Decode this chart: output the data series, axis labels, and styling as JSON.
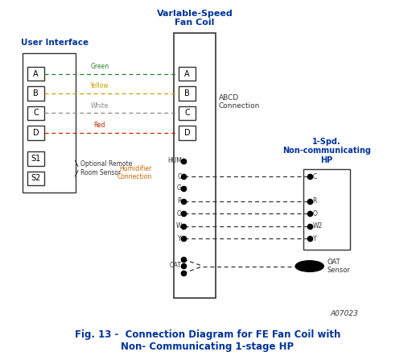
{
  "title": "Fig. 13 -  Connection Diagram for FE Fan Coil with\nNon- Communicating 1-stage HP",
  "fig_code": "A07023",
  "background_color": "#ffffff",
  "ui_label": "User Interface",
  "fan_coil_label": "Varlable-Speed\nFan Coil",
  "hp_label": "1-Spd.\nNon-communicating\nHP",
  "abcd_label": "ABCD\nConnection",
  "humidifier_label": "Humidifier\nConnection",
  "optional_sensor_label": "Optional Remote\nRoom Sensor",
  "oat_sensor_label": "OAT\nSensor",
  "ui_terminals": [
    "A",
    "B",
    "C",
    "D",
    "S1",
    "S2"
  ],
  "fc_terminals_abcd": [
    "A",
    "B",
    "C",
    "D"
  ],
  "fc_terminals_lower": [
    "HUM",
    "C",
    "G",
    "R",
    "O",
    "W",
    "Y",
    "OAT"
  ],
  "hp_terminals": [
    "C",
    "R",
    "O",
    "W2",
    "Y"
  ],
  "wire_colors": {
    "A": "#4a7c59",
    "B": "#b8860b",
    "C": "#888888",
    "D": "#cc2200"
  },
  "wire_color_labels": {
    "A": "Green",
    "B": "Yellow",
    "C": "White",
    "D": "Red"
  }
}
